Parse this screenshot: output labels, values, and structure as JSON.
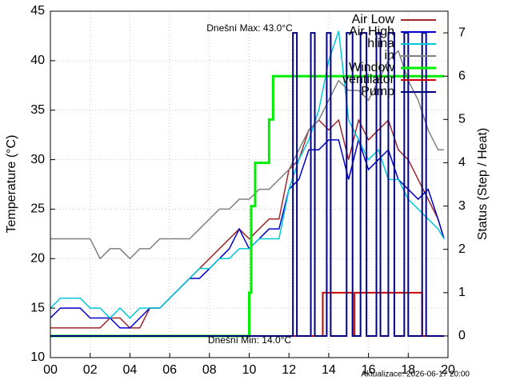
{
  "chart_data": {
    "type": "line",
    "x": [
      0,
      0.5,
      1,
      1.5,
      2,
      2.5,
      3,
      3.5,
      4,
      4.5,
      5,
      5.5,
      6,
      6.5,
      7,
      7.5,
      8,
      8.5,
      9,
      9.5,
      10,
      10.5,
      11,
      11.5,
      12,
      12.5,
      13,
      13.5,
      14,
      14.5,
      15,
      15.5,
      16,
      16.5,
      17,
      17.5,
      18,
      18.5,
      19,
      19.5,
      19.8
    ],
    "xlim": [
      0,
      20
    ],
    "xticks": [
      {
        "value": 0,
        "label": "00"
      },
      {
        "value": 2,
        "label": "02"
      },
      {
        "value": 4,
        "label": "04"
      },
      {
        "value": 6,
        "label": "06"
      },
      {
        "value": 8,
        "label": "08"
      },
      {
        "value": 10,
        "label": "10"
      },
      {
        "value": 12,
        "label": "12"
      },
      {
        "value": 14,
        "label": "14"
      },
      {
        "value": 16,
        "label": "16"
      },
      {
        "value": 18,
        "label": "18"
      },
      {
        "value": 20,
        "label": "20"
      }
    ],
    "ylim": [
      10,
      45
    ],
    "yticks": [
      10,
      15,
      20,
      25,
      30,
      35,
      40,
      45
    ],
    "y2lim": [
      -0.5,
      7.5
    ],
    "y2ticks": [
      0,
      1,
      2,
      3,
      4,
      5,
      6,
      7
    ],
    "ylabel": "Temperature (°C)",
    "y2label": "Status (Step / Heat)",
    "grid": true,
    "legend": "upper right",
    "annotations": [
      {
        "text": "Dnešní Max: 43.0°C",
        "color": "#ff0000"
      },
      {
        "text": "Dnešní Min: 14.0°C",
        "color": "#0000cc"
      },
      {
        "text": "Aktualizace: 2026-06-17 20:00",
        "color": "#c0c0c0"
      }
    ],
    "series": [
      {
        "name": "Air Low",
        "color": "#a0262a",
        "values": [
          13,
          13,
          13,
          13,
          13,
          13,
          14,
          14,
          13,
          13,
          15,
          15,
          16,
          17,
          18,
          19,
          20,
          21,
          22,
          23,
          22,
          23,
          24,
          24,
          29,
          30,
          33,
          34,
          33,
          34,
          30,
          34,
          32,
          33,
          34,
          31,
          30,
          28,
          26,
          24,
          22
        ]
      },
      {
        "name": "Air High",
        "color": "#0000cc",
        "values": [
          14,
          15,
          15,
          15,
          14,
          14,
          14,
          13,
          13,
          14,
          15,
          15,
          16,
          17,
          18,
          18,
          19,
          20,
          21,
          23,
          21,
          22,
          23,
          23,
          27,
          28,
          31,
          31,
          32,
          32,
          28,
          32,
          29,
          30,
          31,
          28,
          27,
          26,
          27,
          24,
          22
        ]
      },
      {
        "name": "hlina",
        "color": "#00c8d8",
        "values": [
          15,
          16,
          16,
          16,
          15,
          15,
          14,
          15,
          14,
          15,
          15,
          15,
          16,
          17,
          18,
          19,
          19,
          20,
          20,
          21,
          21,
          22,
          22,
          22,
          27,
          30,
          32,
          35,
          40,
          43,
          34,
          32,
          30,
          31,
          28,
          28,
          26,
          25,
          24,
          23,
          22
        ]
      },
      {
        "name": "in",
        "color": "#808080",
        "values": [
          22,
          22,
          22,
          22,
          22,
          20,
          21,
          21,
          20,
          21,
          21,
          22,
          22,
          22,
          22,
          23,
          24,
          25,
          25,
          26,
          26,
          27,
          27,
          28,
          29,
          31,
          33,
          34,
          36,
          38,
          37,
          37,
          36,
          38,
          40,
          41,
          38,
          36,
          33,
          31,
          31
        ]
      },
      {
        "name": "Window",
        "color": "#00ee00",
        "axis": "y2",
        "x": [
          0,
          10,
          10,
          10.1,
          10.1,
          10.3,
          10.3,
          11,
          11,
          11.2,
          11.2,
          19.8
        ],
        "values": [
          0,
          0,
          1,
          1,
          3,
          3,
          4,
          4,
          5,
          5,
          6,
          6
        ]
      },
      {
        "name": "ventilator",
        "color": "#cc0000",
        "axis": "y2",
        "x": [
          0,
          13.7,
          13.7,
          15.2,
          15.2,
          15.3,
          15.3,
          18.7,
          18.7,
          19.8
        ],
        "values": [
          0,
          0,
          1,
          1,
          0,
          0,
          1,
          1,
          0,
          0
        ]
      },
      {
        "name": "Pump",
        "color": "#000080",
        "axis": "y2",
        "x": [
          0,
          12.2,
          12.2,
          12.4,
          12.4,
          13.1,
          13.1,
          13.3,
          13.3,
          13.9,
          13.9,
          14.1,
          14.1,
          14.9,
          14.9,
          15.2,
          15.2,
          15.6,
          15.6,
          15.9,
          15.9,
          16.4,
          16.4,
          16.6,
          16.6,
          17.0,
          17.0,
          17.3,
          17.3,
          17.8,
          17.8,
          18.0,
          18.0,
          18.7,
          18.7,
          18.9,
          18.9,
          19.8
        ],
        "values": [
          0,
          0,
          7,
          7,
          0,
          0,
          7,
          7,
          0,
          0,
          7,
          7,
          0,
          0,
          7,
          7,
          0,
          0,
          7,
          7,
          0,
          0,
          7,
          7,
          0,
          0,
          7,
          7,
          0,
          0,
          7,
          7,
          0,
          0,
          7,
          7,
          0,
          0
        ]
      }
    ]
  }
}
